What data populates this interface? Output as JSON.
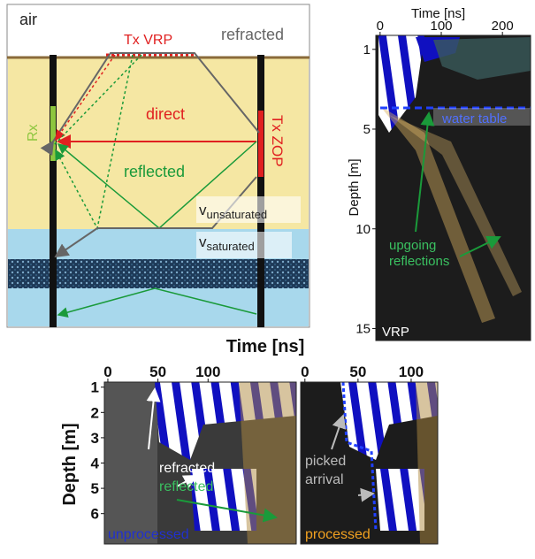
{
  "schematic": {
    "air": "air",
    "tx_vrp": "Tx VRP",
    "refracted": "refracted",
    "direct": "direct",
    "rx": "Rx",
    "tx_zop": "Tx ZOP",
    "reflected": "reflected",
    "v_unsaturated": {
      "base": "v",
      "sub": "unsaturated"
    },
    "v_saturated": {
      "base": "v",
      "sub": "saturated"
    }
  },
  "vrp_panel": {
    "x_label": "Time [ns]",
    "y_label": "Depth [m]",
    "xlim": [
      -7,
      246
    ],
    "ylim": [
      0.3,
      15.6
    ],
    "xticks": [
      0,
      100,
      200
    ],
    "yticks": [
      1,
      5,
      10,
      15
    ],
    "water_table": "water table",
    "upgoing_reflections": [
      "upgoing",
      "reflections"
    ],
    "tag": "VRP"
  },
  "zop_panels": {
    "x_label": "Time [ns]",
    "y_label": "Depth [m]",
    "ylim": [
      0.8,
      7.2
    ],
    "yticks": [
      1,
      2,
      3,
      4,
      5,
      6
    ],
    "left": {
      "xlim": [
        -3.5,
        188
      ],
      "xticks": [
        0,
        50,
        100
      ],
      "refracted": "refracted",
      "reflected": "reflected",
      "tag": "unprocessed"
    },
    "right": {
      "xlim": [
        -4,
        125
      ],
      "xticks": [
        0,
        50,
        100
      ],
      "picked_arrival": [
        "picked",
        "arrival"
      ],
      "tag": "processed"
    }
  }
}
